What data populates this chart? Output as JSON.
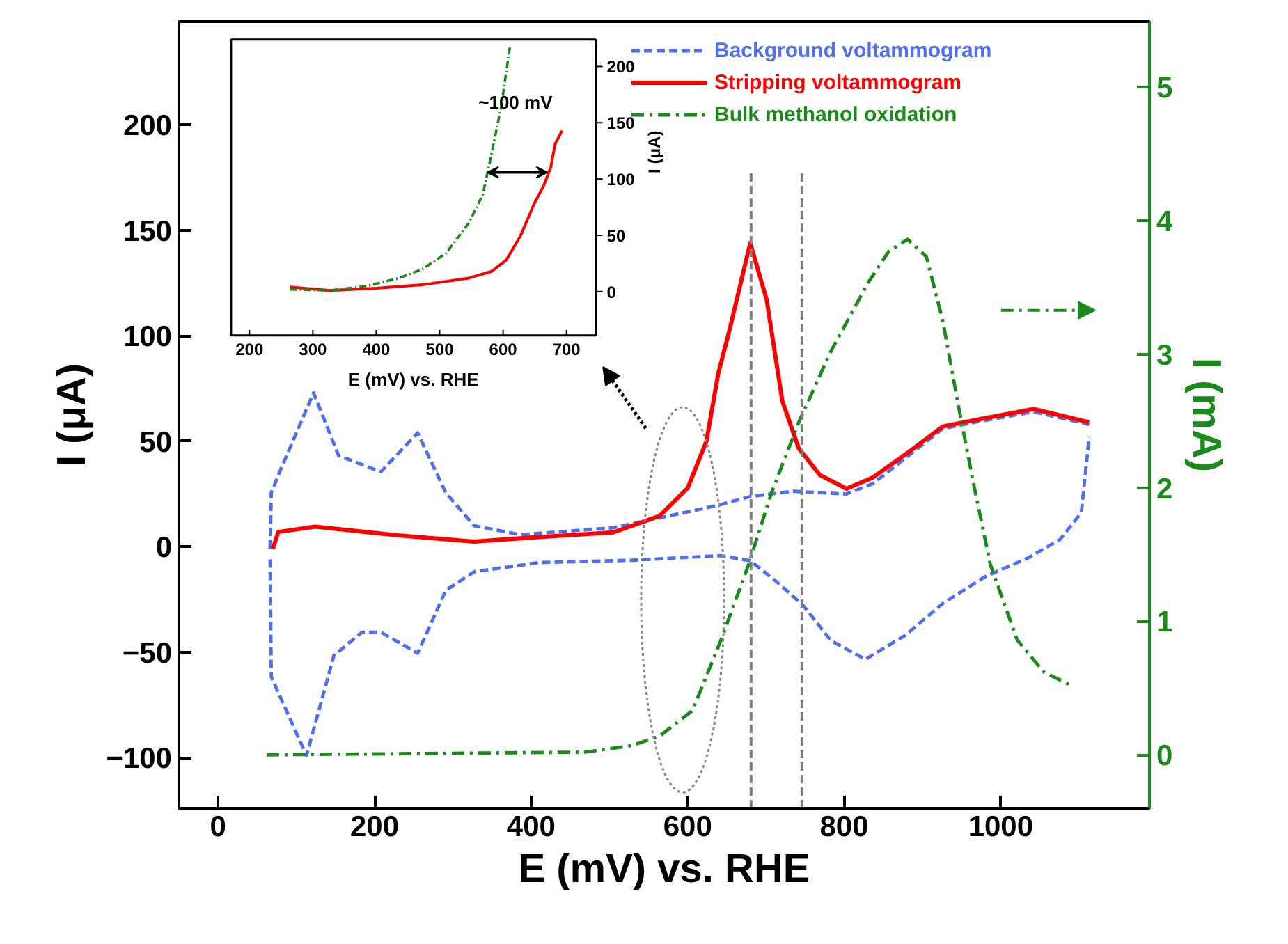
{
  "chart_data": [
    {
      "type": "line",
      "xlabel": "E (mV) vs. RHE",
      "ylabel": "I (μA)",
      "y2label": "I (mA)",
      "xlim": [
        -50,
        1190
      ],
      "ylim": [
        -124,
        249
      ],
      "y2lim": [
        -0.4,
        5.49
      ],
      "xticks": [
        0,
        200,
        400,
        600,
        800,
        1000
      ],
      "yticks": [
        -100,
        -50,
        0,
        50,
        100,
        150,
        200
      ],
      "y2ticks": [
        0,
        1,
        2,
        3,
        4,
        5
      ],
      "legend": "top right",
      "ref_lines": [
        {
          "axis": "x",
          "value": 681,
          "color": "#808080",
          "line_style": "dashed"
        },
        {
          "axis": "x",
          "value": 746,
          "color": "#808080",
          "line_style": "dashed"
        }
      ],
      "series": [
        {
          "name": "Background voltammogram",
          "color": "#4f6ef0",
          "line_style": "dashed",
          "x": [
            66.5,
            68,
            80,
            122,
            154,
            208,
            255,
            291,
            327,
            386,
            505,
            612,
            642,
            680,
            735,
            803,
            837,
            885,
            926,
            974,
            1042,
            1113
          ],
          "values": [
            -0.9,
            25.6,
            36.6,
            73,
            43.2,
            35.5,
            54,
            25.6,
            10,
            5.7,
            9,
            17.5,
            20,
            23.8,
            26.3,
            25,
            30,
            44,
            56,
            59.5,
            64,
            58
          ]
        },
        {
          "color": "#4f6ef0",
          "line_style": "dashed",
          "x": [
            66.5,
            68,
            113,
            148,
            184,
            208,
            255,
            291,
            327,
            410,
            529,
            642,
            680,
            714,
            748,
            783,
            827,
            878,
            926,
            980,
            1035,
            1076,
            1103,
            1113
          ],
          "values": [
            -6,
            -61.7,
            -99,
            -51.6,
            -40.5,
            -40.5,
            -50.5,
            -20.7,
            -11.9,
            -7.5,
            -6.4,
            -4.2,
            -6.6,
            -16.7,
            -28,
            -44.5,
            -53.4,
            -42,
            -26.9,
            -14.2,
            -5.3,
            3.5,
            16.2,
            52
          ]
        },
        {
          "name": "Stripping voltammogram",
          "color": "#ff0000",
          "line_style": "solid",
          "x": [
            70,
            77,
            124,
            232,
            327,
            410,
            505,
            564,
            600,
            624,
            639,
            653,
            680,
            701,
            721,
            742,
            769,
            803,
            837,
            885,
            926,
            974,
            1042,
            1113
          ],
          "values": [
            -1,
            7,
            9.5,
            5.3,
            2.4,
            4.6,
            6.8,
            14.6,
            27.8,
            50,
            82,
            102,
            144,
            117,
            69,
            46.6,
            34,
            27.5,
            32.9,
            45.6,
            57,
            60.5,
            65.3,
            59
          ]
        },
        {
          "name": "Bulk methanol oxidation",
          "color": "#1a8a1a",
          "line_style": "dashdot",
          "axis": "y2",
          "x": [
            62,
            469,
            529,
            564,
            606,
            642,
            677,
            707,
            742,
            782,
            830,
            857,
            881,
            905,
            926,
            946,
            967,
            987,
            1021,
            1055,
            1090
          ],
          "values": [
            0,
            0.02,
            0.07,
            0.14,
            0.33,
            0.85,
            1.41,
            1.96,
            2.49,
            3.01,
            3.53,
            3.77,
            3.86,
            3.73,
            3.25,
            2.61,
            1.98,
            1.42,
            0.86,
            0.62,
            0.52
          ]
        }
      ]
    },
    {
      "type": "line",
      "xlabel": "E (mV) vs. RHE",
      "ylabel": "I (μA)",
      "xlim": [
        171,
        746
      ],
      "ylim": [
        -39,
        224
      ],
      "xticks": [
        200,
        300,
        400,
        500,
        600,
        700
      ],
      "yticks": [
        0,
        50,
        100,
        150,
        200
      ],
      "annotations": [
        "~100 mV"
      ],
      "series": [
        {
          "color": "#ff0000",
          "line_style": "solid",
          "x": [
            264,
            327,
            400,
            473,
            546,
            582,
            605,
            627,
            649,
            664,
            675,
            682,
            693
          ],
          "values": [
            4,
            1,
            3,
            6,
            12,
            18,
            28,
            49,
            78,
            94,
            110,
            131,
            143
          ]
        },
        {
          "color": "#1a8a1a",
          "line_style": "dashdot",
          "x": [
            264,
            327,
            385,
            436,
            473,
            510,
            546,
            568,
            582,
            597,
            611
          ],
          "values": [
            2,
            1,
            5,
            12,
            20,
            34,
            61,
            86,
            123,
            164,
            218
          ]
        }
      ]
    }
  ]
}
